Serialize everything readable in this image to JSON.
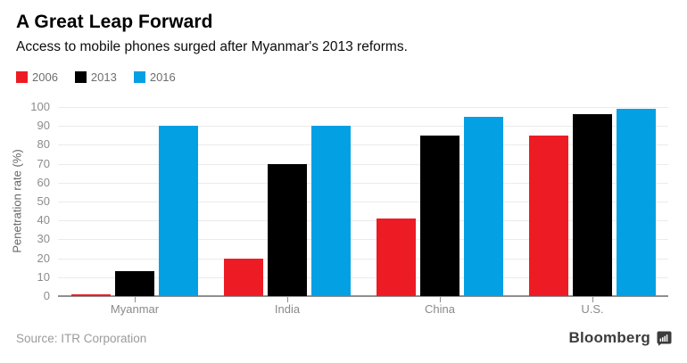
{
  "header": {
    "title": "A Great Leap Forward",
    "subtitle": "Access to mobile phones surged after Myanmar's 2013 reforms."
  },
  "legend": {
    "items": [
      {
        "label": "2006",
        "color": "#ed1c24"
      },
      {
        "label": "2013",
        "color": "#000000"
      },
      {
        "label": "2016",
        "color": "#04a0e4"
      }
    ]
  },
  "chart_data": {
    "type": "bar",
    "categories": [
      "Myanmar",
      "India",
      "China",
      "U.S."
    ],
    "series": [
      {
        "name": "2006",
        "color": "#ed1c24",
        "values": [
          1,
          20,
          41,
          85
        ]
      },
      {
        "name": "2013",
        "color": "#000000",
        "values": [
          13,
          70,
          85,
          96
        ]
      },
      {
        "name": "2016",
        "color": "#04a0e4",
        "values": [
          90,
          90,
          95,
          99
        ]
      }
    ],
    "title": "A Great Leap Forward",
    "xlabel": "",
    "ylabel": "Penetration rate (%)",
    "ylim": [
      0,
      100
    ],
    "ytick_step": 10,
    "grid": true,
    "legend_position": "top-left"
  },
  "footer": {
    "source": "Source: ITR Corporation",
    "brand": "Bloomberg"
  },
  "colors": {
    "accent_red": "#ed1c24",
    "accent_black": "#000000",
    "accent_blue": "#04a0e4",
    "grid_line": "#ebebeb",
    "axis_line": "#8f8f8f",
    "tick_label": "#8c8c8c",
    "category_label": "#8a8a8a",
    "legend_label": "#6e6e6e",
    "source_text": "#9b9b9b",
    "brand_text": "#3c3c3c"
  }
}
